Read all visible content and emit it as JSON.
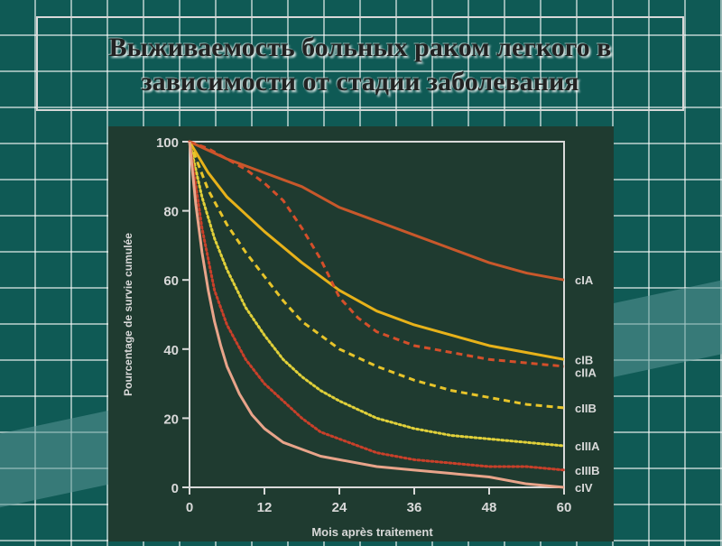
{
  "slide": {
    "title_line1": "Выживаемость больных раком легкого в",
    "title_line2": "зависимости от стадии заболевания"
  },
  "colors": {
    "background": "#0f5a55",
    "plot_background": "#1f3b30",
    "axis": "#d9d9d9"
  },
  "chart_data": {
    "type": "line",
    "xlabel": "Mois après traitement",
    "ylabel": "Pourcentage de survie cumulée",
    "xlim": [
      0,
      60
    ],
    "ylim": [
      0,
      100
    ],
    "xticks": [
      0,
      12,
      24,
      36,
      48,
      60
    ],
    "yticks": [
      0,
      20,
      40,
      60,
      80,
      100
    ],
    "grid": false,
    "series": [
      {
        "name": "cIA",
        "color": "#c8582b",
        "style": "solid",
        "x": [
          0,
          6,
          12,
          18,
          24,
          30,
          36,
          42,
          48,
          54,
          60
        ],
        "y": [
          100,
          95,
          91,
          87,
          81,
          77,
          73,
          69,
          65,
          62,
          60
        ]
      },
      {
        "name": "cIB",
        "color": "#e7b21a",
        "style": "solid",
        "x": [
          0,
          3,
          6,
          9,
          12,
          18,
          24,
          30,
          36,
          42,
          48,
          54,
          60
        ],
        "y": [
          100,
          91,
          84,
          79,
          74,
          65,
          57,
          51,
          47,
          44,
          41,
          39,
          37
        ]
      },
      {
        "name": "cIIA",
        "color": "#d44f2a",
        "style": "dashed",
        "x": [
          0,
          3,
          6,
          9,
          12,
          15,
          18,
          21,
          24,
          27,
          30,
          36,
          42,
          48,
          54,
          60
        ],
        "y": [
          100,
          98,
          95,
          92,
          88,
          83,
          75,
          66,
          55,
          49,
          45,
          41,
          39,
          37,
          36,
          35
        ]
      },
      {
        "name": "cIIB",
        "color": "#e7c42a",
        "style": "dashed",
        "x": [
          0,
          3,
          6,
          9,
          12,
          15,
          18,
          21,
          24,
          30,
          36,
          42,
          48,
          54,
          60
        ],
        "y": [
          100,
          86,
          76,
          68,
          61,
          54,
          48,
          44,
          40,
          35,
          31,
          28,
          26,
          24,
          23
        ]
      },
      {
        "name": "cIIIA",
        "color": "#e0d03a",
        "style": "dotted",
        "x": [
          0,
          2,
          4,
          6,
          9,
          12,
          15,
          18,
          21,
          24,
          30,
          36,
          42,
          48,
          54,
          60
        ],
        "y": [
          100,
          84,
          72,
          63,
          52,
          44,
          37,
          32,
          28,
          25,
          20,
          17,
          15,
          14,
          13,
          12
        ]
      },
      {
        "name": "cIIIB",
        "color": "#c8402a",
        "style": "dotted",
        "x": [
          0,
          2,
          4,
          6,
          9,
          12,
          15,
          18,
          21,
          24,
          30,
          36,
          42,
          48,
          54,
          60
        ],
        "y": [
          100,
          75,
          57,
          47,
          37,
          30,
          25,
          20,
          16,
          14,
          10,
          8,
          7,
          6,
          6,
          5
        ]
      },
      {
        "name": "cIV",
        "color": "#e8a48a",
        "style": "solid",
        "x": [
          0,
          1,
          2,
          3,
          4,
          5,
          6,
          8,
          10,
          12,
          15,
          18,
          21,
          24,
          30,
          36,
          42,
          48,
          54,
          60
        ],
        "y": [
          100,
          82,
          68,
          57,
          48,
          41,
          35,
          27,
          21,
          17,
          13,
          11,
          9,
          8,
          6,
          5,
          4,
          3,
          1,
          0
        ]
      }
    ]
  }
}
